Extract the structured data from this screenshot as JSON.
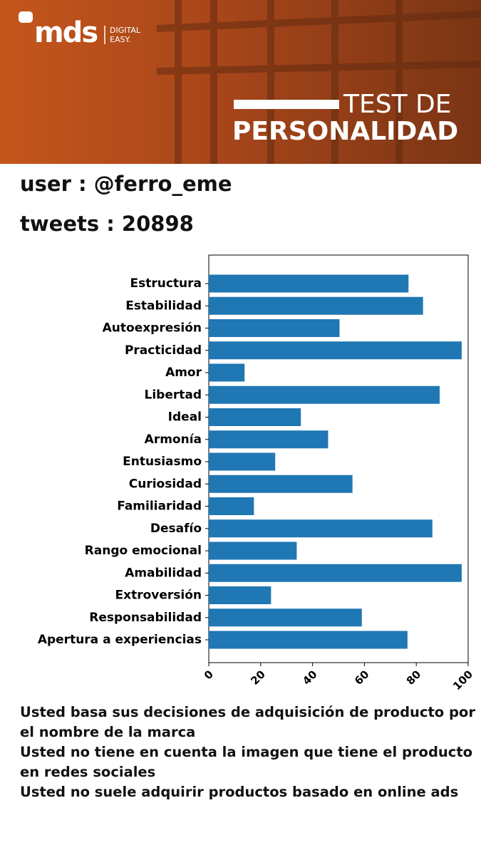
{
  "header": {
    "logo": "mds",
    "tagline_1": "DIGITAL",
    "tagline_2": "EASY.",
    "title_1": "TEST DE",
    "title_2": "PERSONALIDAD"
  },
  "user": "user : @ferro_eme",
  "tweets": "tweets : 20898",
  "chart_data": {
    "type": "barh",
    "categories": [
      "Estructura",
      "Estabilidad",
      "Autoexpresión",
      "Practicidad",
      "Amor",
      "Libertad",
      "Ideal",
      "Armonía",
      "Entusiasmo",
      "Curiosidad",
      "Familiaridad",
      "Desafío",
      "Rango emocional",
      "Amabilidad",
      "Extroversión",
      "Responsabilidad",
      "Apertura a experiencias"
    ],
    "values": [
      77,
      82.6,
      50.4,
      97.5,
      13.8,
      89,
      35.5,
      46,
      25.6,
      55.4,
      17.4,
      86.2,
      33.9,
      97.5,
      24,
      59,
      76.6
    ],
    "color": "#1f77b4",
    "xlim": [
      0,
      100
    ],
    "xticks": [
      0,
      20,
      40,
      60,
      80,
      100
    ],
    "grid": false
  },
  "conclusions": [
    "Usted basa sus decisiones de adquisición de producto por el nombre de la marca",
    "Usted no tiene en cuenta la imagen que tiene el producto en redes sociales",
    "Usted no suele adquirir productos basado en online ads"
  ]
}
